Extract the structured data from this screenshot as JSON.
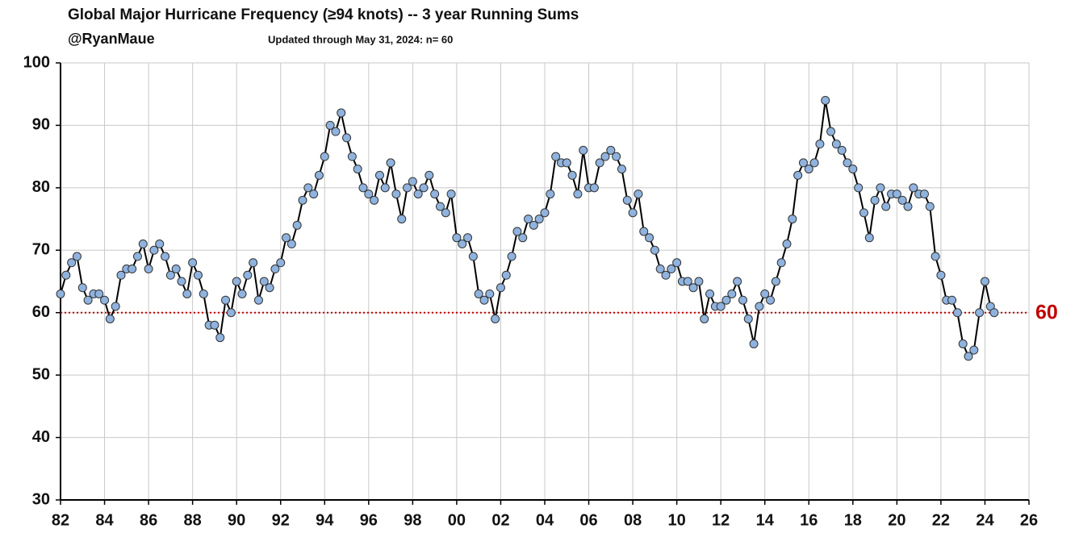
{
  "chart_data": {
    "type": "line",
    "title": "Global Major Hurricane Frequency (≥94 knots)  -- 3 year Running Sums",
    "subtitle": "@RyanMaue",
    "annotation": "Updated through May 31, 2024:  n= 60",
    "x": [
      1982.0,
      1982.25,
      1982.5,
      1982.75,
      1983.0,
      1983.25,
      1983.5,
      1983.75,
      1984.0,
      1984.25,
      1984.5,
      1984.75,
      1985.0,
      1985.25,
      1985.5,
      1985.75,
      1986.0,
      1986.25,
      1986.5,
      1986.75,
      1987.0,
      1987.25,
      1987.5,
      1987.75,
      1988.0,
      1988.25,
      1988.5,
      1988.75,
      1989.0,
      1989.25,
      1989.5,
      1989.75,
      1990.0,
      1990.25,
      1990.5,
      1990.75,
      1991.0,
      1991.25,
      1991.5,
      1991.75,
      1992.0,
      1992.25,
      1992.5,
      1992.75,
      1993.0,
      1993.25,
      1993.5,
      1993.75,
      1994.0,
      1994.25,
      1994.5,
      1994.75,
      1995.0,
      1995.25,
      1995.5,
      1995.75,
      1996.0,
      1996.25,
      1996.5,
      1996.75,
      1997.0,
      1997.25,
      1997.5,
      1997.75,
      1998.0,
      1998.25,
      1998.5,
      1998.75,
      1999.0,
      1999.25,
      1999.5,
      1999.75,
      2000.0,
      2000.25,
      2000.5,
      2000.75,
      2001.0,
      2001.25,
      2001.5,
      2001.75,
      2002.0,
      2002.25,
      2002.5,
      2002.75,
      2003.0,
      2003.25,
      2003.5,
      2003.75,
      2004.0,
      2004.25,
      2004.5,
      2004.75,
      2005.0,
      2005.25,
      2005.5,
      2005.75,
      2006.0,
      2006.25,
      2006.5,
      2006.75,
      2007.0,
      2007.25,
      2007.5,
      2007.75,
      2008.0,
      2008.25,
      2008.5,
      2008.75,
      2009.0,
      2009.25,
      2009.5,
      2009.75,
      2010.0,
      2010.25,
      2010.5,
      2010.75,
      2011.0,
      2011.25,
      2011.5,
      2011.75,
      2012.0,
      2012.25,
      2012.5,
      2012.75,
      2013.0,
      2013.25,
      2013.5,
      2013.75,
      2014.0,
      2014.25,
      2014.5,
      2014.75,
      2015.0,
      2015.25,
      2015.5,
      2015.75,
      2016.0,
      2016.25,
      2016.5,
      2016.75,
      2017.0,
      2017.25,
      2017.5,
      2017.75,
      2018.0,
      2018.25,
      2018.5,
      2018.75,
      2019.0,
      2019.25,
      2019.5,
      2019.75,
      2020.0,
      2020.25,
      2020.5,
      2020.75,
      2021.0,
      2021.25,
      2021.5,
      2021.75,
      2022.0,
      2022.25,
      2022.5,
      2022.75,
      2023.0,
      2023.25,
      2023.5,
      2023.75,
      2024.0,
      2024.25,
      2024.42
    ],
    "series": [
      {
        "color": "#8fb3de",
        "line_color": "#000000",
        "values": [
          63,
          66,
          68,
          69,
          64,
          62,
          63,
          63,
          62,
          59,
          61,
          66,
          67,
          67,
          69,
          71,
          67,
          70,
          71,
          69,
          66,
          67,
          65,
          63,
          68,
          66,
          63,
          58,
          58,
          56,
          62,
          60,
          65,
          63,
          66,
          68,
          62,
          65,
          64,
          67,
          68,
          72,
          71,
          74,
          78,
          80,
          79,
          82,
          85,
          90,
          89,
          92,
          88,
          85,
          83,
          80,
          79,
          78,
          82,
          80,
          84,
          79,
          75,
          80,
          81,
          79,
          80,
          82,
          79,
          77,
          76,
          79,
          72,
          71,
          72,
          69,
          63,
          62,
          63,
          59,
          64,
          66,
          69,
          73,
          72,
          75,
          74,
          75,
          76,
          79,
          85,
          84,
          84,
          82,
          79,
          86,
          80,
          80,
          84,
          85,
          86,
          85,
          83,
          78,
          76,
          79,
          73,
          72,
          70,
          67,
          66,
          67,
          68,
          65,
          65,
          64,
          65,
          59,
          63,
          61,
          61,
          62,
          63,
          65,
          62,
          59,
          55,
          61,
          63,
          62,
          65,
          68,
          71,
          75,
          82,
          84,
          83,
          84,
          87,
          94,
          89,
          87,
          86,
          84,
          83,
          80,
          76,
          72,
          78,
          80,
          77,
          79,
          79,
          78,
          77,
          80,
          79,
          79,
          77,
          69,
          66,
          62,
          62,
          60,
          55,
          53,
          54,
          60,
          65,
          61,
          60
        ]
      }
    ],
    "xlim": [
      1982,
      2026
    ],
    "xticks": [
      {
        "value": 1982,
        "label": "82"
      },
      {
        "value": 1984,
        "label": "84"
      },
      {
        "value": 1986,
        "label": "86"
      },
      {
        "value": 1988,
        "label": "88"
      },
      {
        "value": 1990,
        "label": "90"
      },
      {
        "value": 1992,
        "label": "92"
      },
      {
        "value": 1994,
        "label": "94"
      },
      {
        "value": 1996,
        "label": "96"
      },
      {
        "value": 1998,
        "label": "98"
      },
      {
        "value": 2000,
        "label": "00"
      },
      {
        "value": 2002,
        "label": "02"
      },
      {
        "value": 2004,
        "label": "04"
      },
      {
        "value": 2006,
        "label": "06"
      },
      {
        "value": 2008,
        "label": "08"
      },
      {
        "value": 2010,
        "label": "10"
      },
      {
        "value": 2012,
        "label": "12"
      },
      {
        "value": 2014,
        "label": "14"
      },
      {
        "value": 2016,
        "label": "16"
      },
      {
        "value": 2018,
        "label": "18"
      },
      {
        "value": 2020,
        "label": "20"
      },
      {
        "value": 2022,
        "label": "22"
      },
      {
        "value": 2024,
        "label": "24"
      },
      {
        "value": 2026,
        "label": "26"
      }
    ],
    "ylim": [
      30,
      100
    ],
    "yticks": [
      30,
      40,
      50,
      60,
      70,
      80,
      90,
      100
    ],
    "grid": true,
    "reference_line": {
      "value": 60,
      "color": "#c00000"
    }
  }
}
